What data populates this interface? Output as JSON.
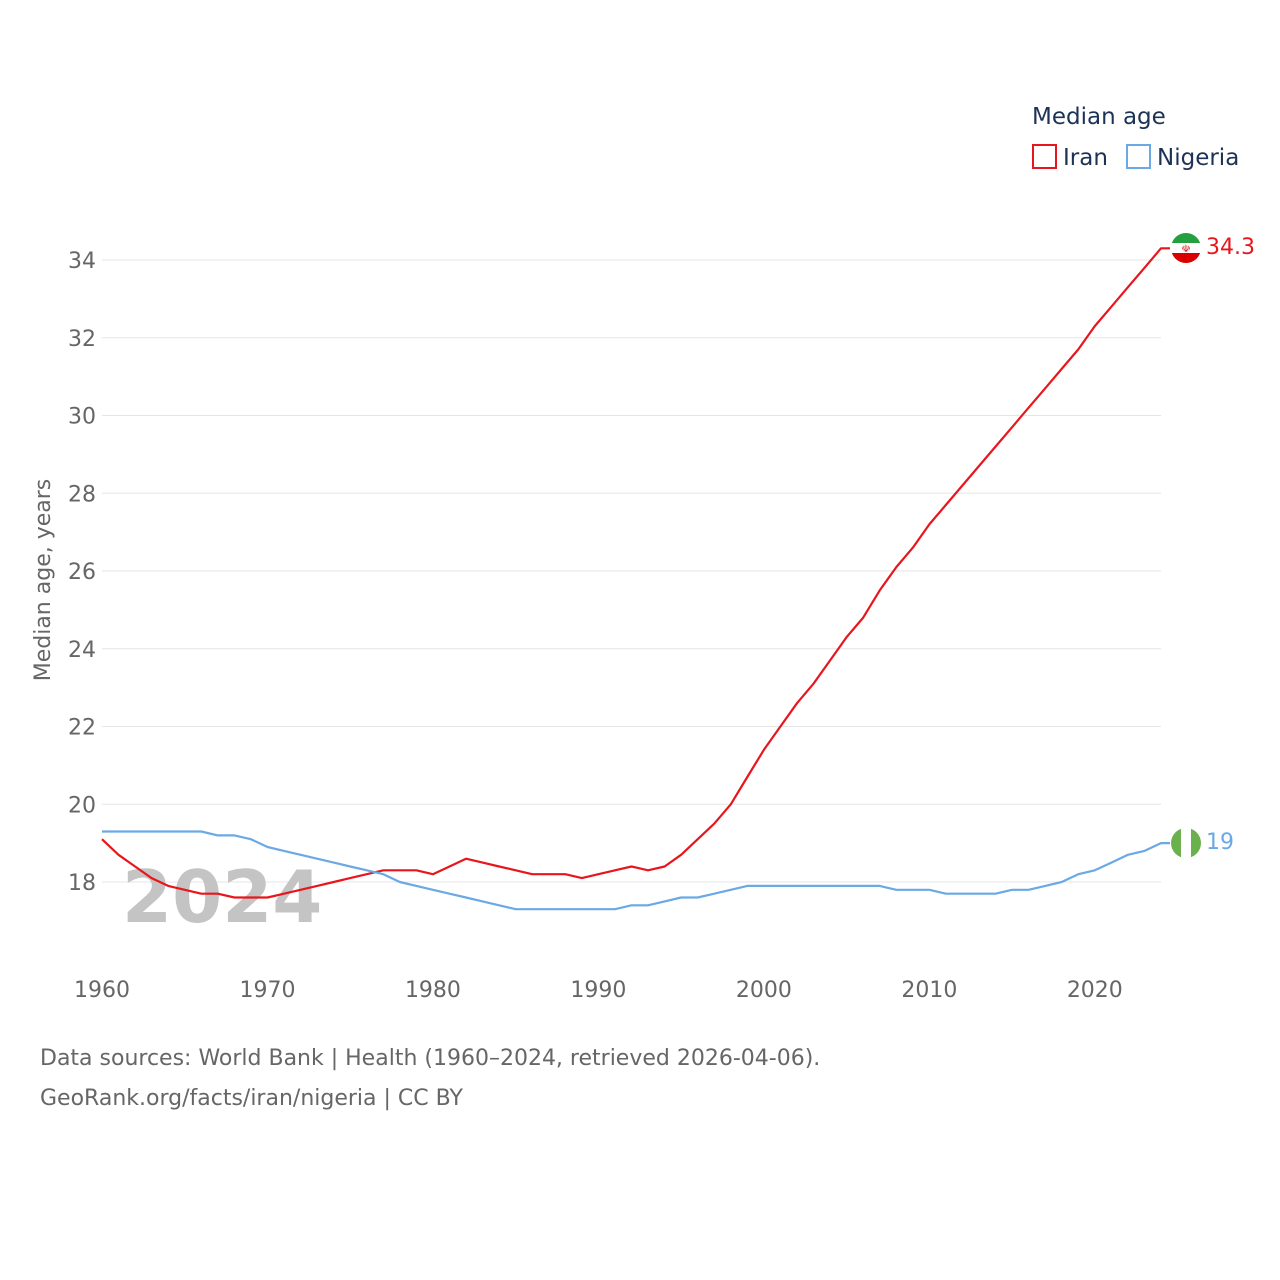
{
  "chart_data": {
    "type": "line",
    "title": "Median age",
    "ylabel": "Median age, years",
    "xlabel": "",
    "xlim": [
      1960,
      2024
    ],
    "ylim": [
      16,
      35.5
    ],
    "y_ticks": [
      18,
      20,
      22,
      24,
      26,
      28,
      30,
      32,
      34
    ],
    "x_ticks": [
      1960,
      1970,
      1980,
      1990,
      2000,
      2010,
      2020
    ],
    "year_label": "2024",
    "legend_position": "top-right",
    "x": [
      1960,
      1961,
      1962,
      1963,
      1964,
      1965,
      1966,
      1967,
      1968,
      1969,
      1970,
      1971,
      1972,
      1973,
      1974,
      1975,
      1976,
      1977,
      1978,
      1979,
      1980,
      1981,
      1982,
      1983,
      1984,
      1985,
      1986,
      1987,
      1988,
      1989,
      1990,
      1991,
      1992,
      1993,
      1994,
      1995,
      1996,
      1997,
      1998,
      1999,
      2000,
      2001,
      2002,
      2003,
      2004,
      2005,
      2006,
      2007,
      2008,
      2009,
      2010,
      2011,
      2012,
      2013,
      2014,
      2015,
      2016,
      2017,
      2018,
      2019,
      2020,
      2021,
      2022,
      2023,
      2024
    ],
    "series": [
      {
        "name": "Iran",
        "color": "#e8161c",
        "end_label": "34.3",
        "values": [
          19.1,
          18.7,
          18.4,
          18.1,
          17.9,
          17.8,
          17.7,
          17.7,
          17.6,
          17.6,
          17.6,
          17.7,
          17.8,
          17.9,
          18.0,
          18.1,
          18.2,
          18.3,
          18.3,
          18.3,
          18.2,
          18.4,
          18.6,
          18.5,
          18.4,
          18.3,
          18.2,
          18.2,
          18.2,
          18.1,
          18.2,
          18.3,
          18.4,
          18.3,
          18.4,
          18.7,
          19.1,
          19.5,
          20.0,
          20.7,
          21.4,
          22.0,
          22.6,
          23.1,
          23.7,
          24.3,
          24.8,
          25.5,
          26.1,
          26.6,
          27.2,
          27.7,
          28.2,
          28.7,
          29.2,
          29.7,
          30.2,
          30.7,
          31.2,
          31.7,
          32.3,
          32.8,
          33.3,
          33.8,
          34.3
        ]
      },
      {
        "name": "Nigeria",
        "color": "#6aa9e4",
        "end_label": "19",
        "values": [
          19.3,
          19.3,
          19.3,
          19.3,
          19.3,
          19.3,
          19.3,
          19.2,
          19.2,
          19.1,
          18.9,
          18.8,
          18.7,
          18.6,
          18.5,
          18.4,
          18.3,
          18.2,
          18.0,
          17.9,
          17.8,
          17.7,
          17.6,
          17.5,
          17.4,
          17.3,
          17.3,
          17.3,
          17.3,
          17.3,
          17.3,
          17.3,
          17.4,
          17.4,
          17.5,
          17.6,
          17.6,
          17.7,
          17.8,
          17.9,
          17.9,
          17.9,
          17.9,
          17.9,
          17.9,
          17.9,
          17.9,
          17.9,
          17.8,
          17.8,
          17.8,
          17.7,
          17.7,
          17.7,
          17.7,
          17.8,
          17.8,
          17.9,
          18.0,
          18.2,
          18.3,
          18.5,
          18.7,
          18.8,
          19.0
        ]
      }
    ]
  },
  "flags": {
    "iran": {
      "colors": [
        "#239f40",
        "#ffffff",
        "#da0000"
      ],
      "emblem_color": "#da0000"
    },
    "nigeria": {
      "colors": [
        "#6ab04c",
        "#ffffff",
        "#6ab04c"
      ]
    }
  },
  "grid_color": "#e6e6e6",
  "footer": {
    "sources": "Data sources: World Bank | Health (1960–2024, retrieved 2026-04-06).",
    "credit": "GeoRank.org/facts/iran/nigeria | CC BY"
  }
}
